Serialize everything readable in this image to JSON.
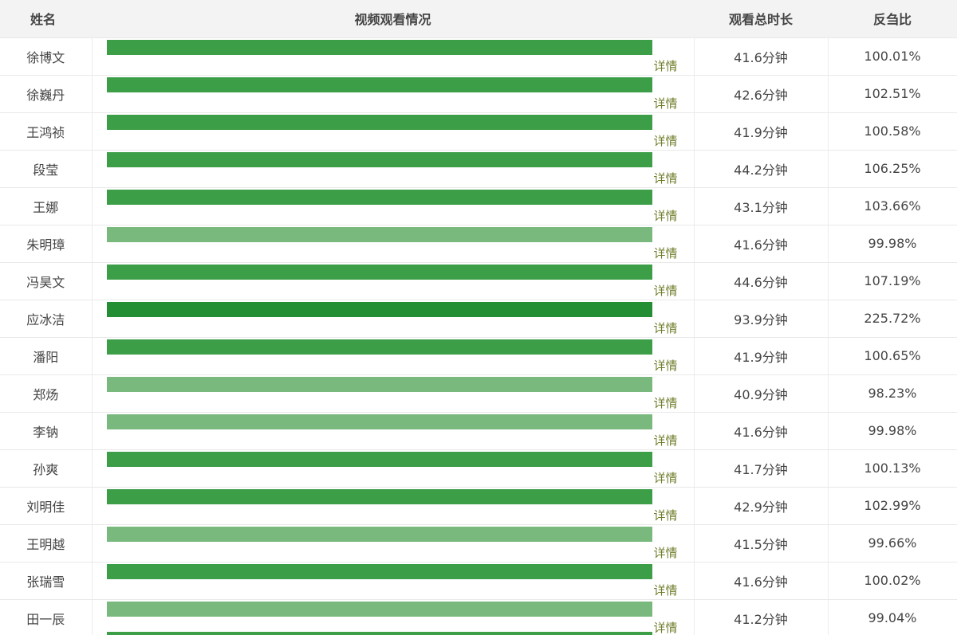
{
  "header": {
    "name": "姓名",
    "video": "视频观看情况",
    "duration": "观看总时长",
    "ratio": "反刍比"
  },
  "colors": {
    "full": "#3d9e48",
    "heavy": "#238e33",
    "partial": "#7ab97e",
    "detail_text": "#6f7d2a"
  },
  "rows": [
    {
      "name": "徐博文",
      "duration": "41.6分钟",
      "ratio": "100.01%",
      "watched": 1.0,
      "detail": "详情"
    },
    {
      "name": "徐巍丹",
      "duration": "42.6分钟",
      "ratio": "102.51%",
      "watched": 1.0,
      "detail": "详情"
    },
    {
      "name": "王鸿祯",
      "duration": "41.9分钟",
      "ratio": "100.58%",
      "watched": 1.0,
      "detail": "详情"
    },
    {
      "name": "段莹",
      "duration": "44.2分钟",
      "ratio": "106.25%",
      "watched": 1.0,
      "detail": "详情"
    },
    {
      "name": "王娜",
      "duration": "43.1分钟",
      "ratio": "103.66%",
      "watched": 1.0,
      "detail": "详情"
    },
    {
      "name": "朱明璋",
      "duration": "41.6分钟",
      "ratio": "99.98%",
      "watched": 1.0,
      "detail": "详情"
    },
    {
      "name": "冯昊文",
      "duration": "44.6分钟",
      "ratio": "107.19%",
      "watched": 1.0,
      "detail": "详情"
    },
    {
      "name": "应冰洁",
      "duration": "93.9分钟",
      "ratio": "225.72%",
      "watched": 1.0,
      "detail": "详情"
    },
    {
      "name": "潘阳",
      "duration": "41.9分钟",
      "ratio": "100.65%",
      "watched": 1.0,
      "detail": "详情"
    },
    {
      "name": "郑炀",
      "duration": "40.9分钟",
      "ratio": "98.23%",
      "watched": 1.0,
      "detail": "详情"
    },
    {
      "name": "李钠",
      "duration": "41.6分钟",
      "ratio": "99.98%",
      "watched": 1.0,
      "detail": "详情"
    },
    {
      "name": "孙爽",
      "duration": "41.7分钟",
      "ratio": "100.13%",
      "watched": 1.0,
      "detail": "详情"
    },
    {
      "name": "刘明佳",
      "duration": "42.9分钟",
      "ratio": "102.99%",
      "watched": 1.0,
      "detail": "详情"
    },
    {
      "name": "王明越",
      "duration": "41.5分钟",
      "ratio": "99.66%",
      "watched": 1.0,
      "detail": "详情"
    },
    {
      "name": "张瑞雪",
      "duration": "41.6分钟",
      "ratio": "100.02%",
      "watched": 1.0,
      "detail": "详情"
    },
    {
      "name": "田一辰",
      "duration": "41.2分钟",
      "ratio": "99.04%",
      "watched": 1.0,
      "detail": "详情"
    }
  ]
}
